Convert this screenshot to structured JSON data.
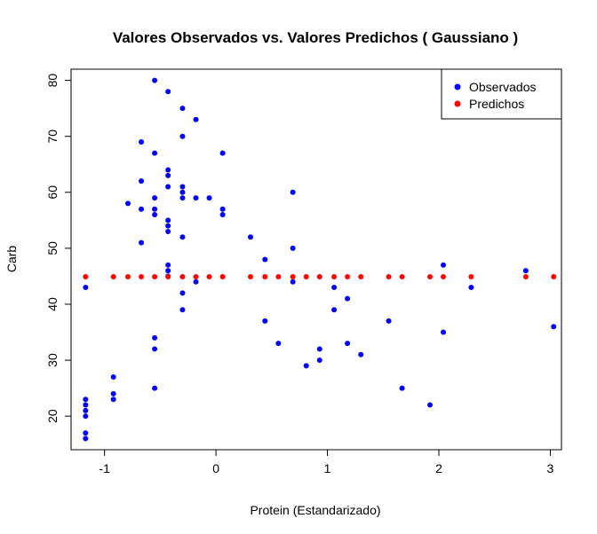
{
  "chart_data": {
    "type": "scatter",
    "title": "Valores Observados vs. Valores Predichos ( Gaussiano )",
    "xlabel": "Protein (Estandarizado)",
    "ylabel": "Carb",
    "xlim": [
      -1.3,
      3.1
    ],
    "ylim": [
      14,
      82
    ],
    "xticks": [
      -1,
      0,
      1,
      2,
      3
    ],
    "yticks": [
      20,
      30,
      40,
      50,
      60,
      70,
      80
    ],
    "grid": false,
    "legend_position": "top-right",
    "legend": [
      "Observados",
      "Predichos"
    ],
    "series": [
      {
        "name": "Observados",
        "color": "#0000ff",
        "points": [
          [
            -1.17,
            43
          ],
          [
            -1.17,
            23
          ],
          [
            -1.17,
            22
          ],
          [
            -1.17,
            21
          ],
          [
            -1.17,
            20
          ],
          [
            -1.17,
            17
          ],
          [
            -1.17,
            16
          ],
          [
            -0.92,
            27
          ],
          [
            -0.92,
            24
          ],
          [
            -0.92,
            23
          ],
          [
            -0.79,
            58
          ],
          [
            -0.67,
            69
          ],
          [
            -0.67,
            62
          ],
          [
            -0.67,
            57
          ],
          [
            -0.67,
            51
          ],
          [
            -0.55,
            80
          ],
          [
            -0.55,
            67
          ],
          [
            -0.55,
            59
          ],
          [
            -0.55,
            57
          ],
          [
            -0.55,
            56
          ],
          [
            -0.55,
            34
          ],
          [
            -0.55,
            32
          ],
          [
            -0.55,
            25
          ],
          [
            -0.43,
            78
          ],
          [
            -0.43,
            64
          ],
          [
            -0.43,
            63
          ],
          [
            -0.43,
            61
          ],
          [
            -0.43,
            55
          ],
          [
            -0.43,
            54
          ],
          [
            -0.43,
            53
          ],
          [
            -0.43,
            47
          ],
          [
            -0.43,
            46
          ],
          [
            -0.43,
            45
          ],
          [
            -0.3,
            75
          ],
          [
            -0.3,
            70
          ],
          [
            -0.3,
            61
          ],
          [
            -0.3,
            60
          ],
          [
            -0.3,
            59
          ],
          [
            -0.3,
            52
          ],
          [
            -0.3,
            42
          ],
          [
            -0.3,
            39
          ],
          [
            -0.18,
            73
          ],
          [
            -0.18,
            59
          ],
          [
            -0.18,
            44
          ],
          [
            -0.06,
            59
          ],
          [
            0.06,
            67
          ],
          [
            0.06,
            57
          ],
          [
            0.06,
            56
          ],
          [
            0.31,
            52
          ],
          [
            0.44,
            48
          ],
          [
            0.44,
            37
          ],
          [
            0.56,
            33
          ],
          [
            0.69,
            60
          ],
          [
            0.69,
            50
          ],
          [
            0.69,
            44
          ],
          [
            0.81,
            29
          ],
          [
            0.93,
            32
          ],
          [
            0.93,
            30
          ],
          [
            1.06,
            43
          ],
          [
            1.06,
            39
          ],
          [
            1.18,
            41
          ],
          [
            1.18,
            33
          ],
          [
            1.3,
            31
          ],
          [
            1.55,
            37
          ],
          [
            1.67,
            25
          ],
          [
            1.92,
            22
          ],
          [
            2.04,
            47
          ],
          [
            2.04,
            35
          ],
          [
            2.29,
            43
          ],
          [
            2.78,
            46
          ],
          [
            3.03,
            36
          ]
        ]
      },
      {
        "name": "Predichos",
        "color": "#ff0000",
        "points": [
          [
            -1.17,
            44.9
          ],
          [
            -0.92,
            44.9
          ],
          [
            -0.79,
            44.9
          ],
          [
            -0.67,
            44.9
          ],
          [
            -0.55,
            44.9
          ],
          [
            -0.43,
            44.9
          ],
          [
            -0.3,
            44.9
          ],
          [
            -0.18,
            44.9
          ],
          [
            -0.06,
            44.9
          ],
          [
            0.06,
            44.9
          ],
          [
            0.31,
            44.9
          ],
          [
            0.44,
            44.9
          ],
          [
            0.56,
            44.9
          ],
          [
            0.69,
            44.9
          ],
          [
            0.81,
            44.9
          ],
          [
            0.93,
            44.9
          ],
          [
            1.06,
            44.9
          ],
          [
            1.18,
            44.9
          ],
          [
            1.3,
            44.9
          ],
          [
            1.55,
            44.9
          ],
          [
            1.67,
            44.9
          ],
          [
            1.92,
            44.9
          ],
          [
            2.04,
            44.9
          ],
          [
            2.29,
            44.9
          ],
          [
            2.78,
            44.9
          ],
          [
            3.03,
            44.9
          ]
        ]
      }
    ]
  }
}
